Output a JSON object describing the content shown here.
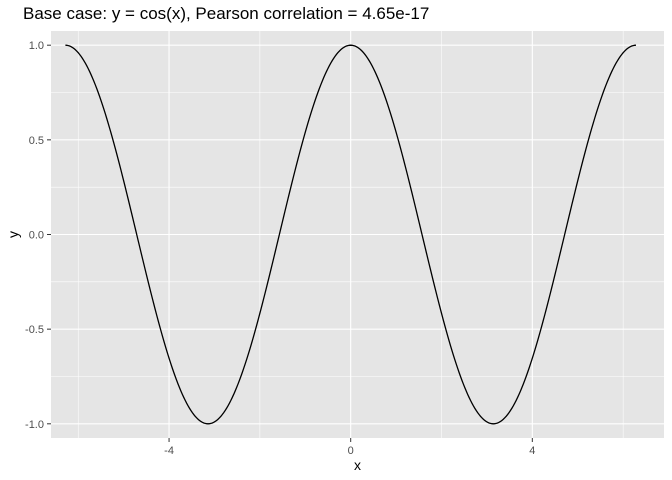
{
  "chart_data": {
    "type": "line",
    "title": "Base case: y = cos(x), Pearson correlation = 4.65e-17",
    "xlabel": "x",
    "ylabel": "y",
    "xlim": [
      -6.6,
      6.9
    ],
    "ylim": [
      -1.075,
      1.075
    ],
    "x_ticks": [
      -4,
      0,
      4
    ],
    "x_tick_labels": [
      "-4",
      "0",
      "4"
    ],
    "y_ticks": [
      -1.0,
      -0.5,
      0.0,
      0.5,
      1.0
    ],
    "y_tick_labels": [
      "-1.0",
      "-0.5",
      "0.0",
      "0.5",
      "1.0"
    ],
    "x_range": [
      -6.283,
      6.283
    ],
    "function": "y = cos(x)",
    "grid": true,
    "background": "#e5e5e5",
    "grid_color": "#ffffff",
    "line_color": "#000000",
    "series": [
      {
        "x": [
          -6.283,
          -5.498,
          -4.712,
          -3.927,
          -3.142,
          -2.356,
          -1.571,
          -0.785,
          0,
          0.785,
          1.571,
          2.356,
          3.142,
          3.927,
          4.712,
          5.498,
          6.283
        ],
        "values": [
          1.0,
          0.707,
          0.0,
          -0.707,
          -1.0,
          -0.707,
          0.0,
          0.707,
          1.0,
          0.707,
          0.0,
          -0.707,
          -1.0,
          -0.707,
          0.0,
          0.707,
          1.0
        ]
      }
    ]
  }
}
